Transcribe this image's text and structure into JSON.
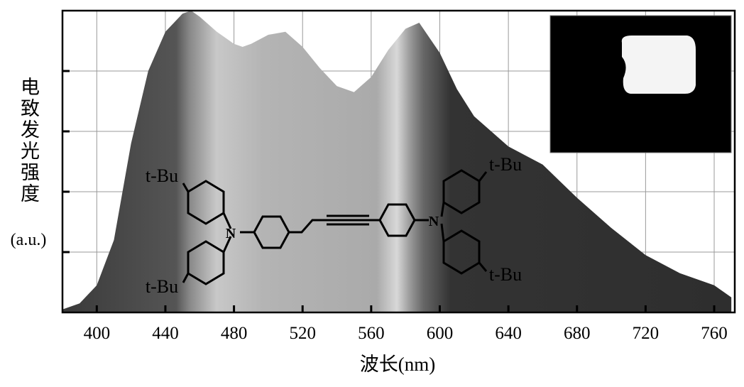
{
  "chart_data": {
    "type": "area",
    "xlabel": "波长(nm)",
    "ylabel": "电致发光强度",
    "ylabel_unit": "(a.u.)",
    "x": [
      380,
      390,
      400,
      410,
      420,
      430,
      440,
      450,
      455,
      460,
      470,
      480,
      485,
      490,
      500,
      510,
      520,
      530,
      540,
      550,
      560,
      570,
      580,
      588,
      600,
      610,
      620,
      640,
      660,
      680,
      700,
      720,
      740,
      760,
      770
    ],
    "values": [
      0.01,
      0.03,
      0.09,
      0.24,
      0.56,
      0.8,
      0.93,
      0.99,
      1.0,
      0.98,
      0.93,
      0.89,
      0.88,
      0.89,
      0.92,
      0.93,
      0.88,
      0.81,
      0.75,
      0.73,
      0.78,
      0.87,
      0.94,
      0.96,
      0.86,
      0.74,
      0.65,
      0.55,
      0.49,
      0.38,
      0.28,
      0.19,
      0.13,
      0.09,
      0.05
    ],
    "xlim": [
      380,
      772
    ],
    "xticks": [
      400,
      440,
      480,
      520,
      560,
      600,
      640,
      680,
      720,
      760
    ],
    "ylim": [
      0,
      1
    ],
    "yticks": [
      0.2,
      0.4,
      0.6,
      0.8
    ],
    "grid": true,
    "annotations": [
      "t-Bu",
      "t-Bu",
      "t-Bu",
      "t-Bu",
      "N",
      "N"
    ]
  }
}
